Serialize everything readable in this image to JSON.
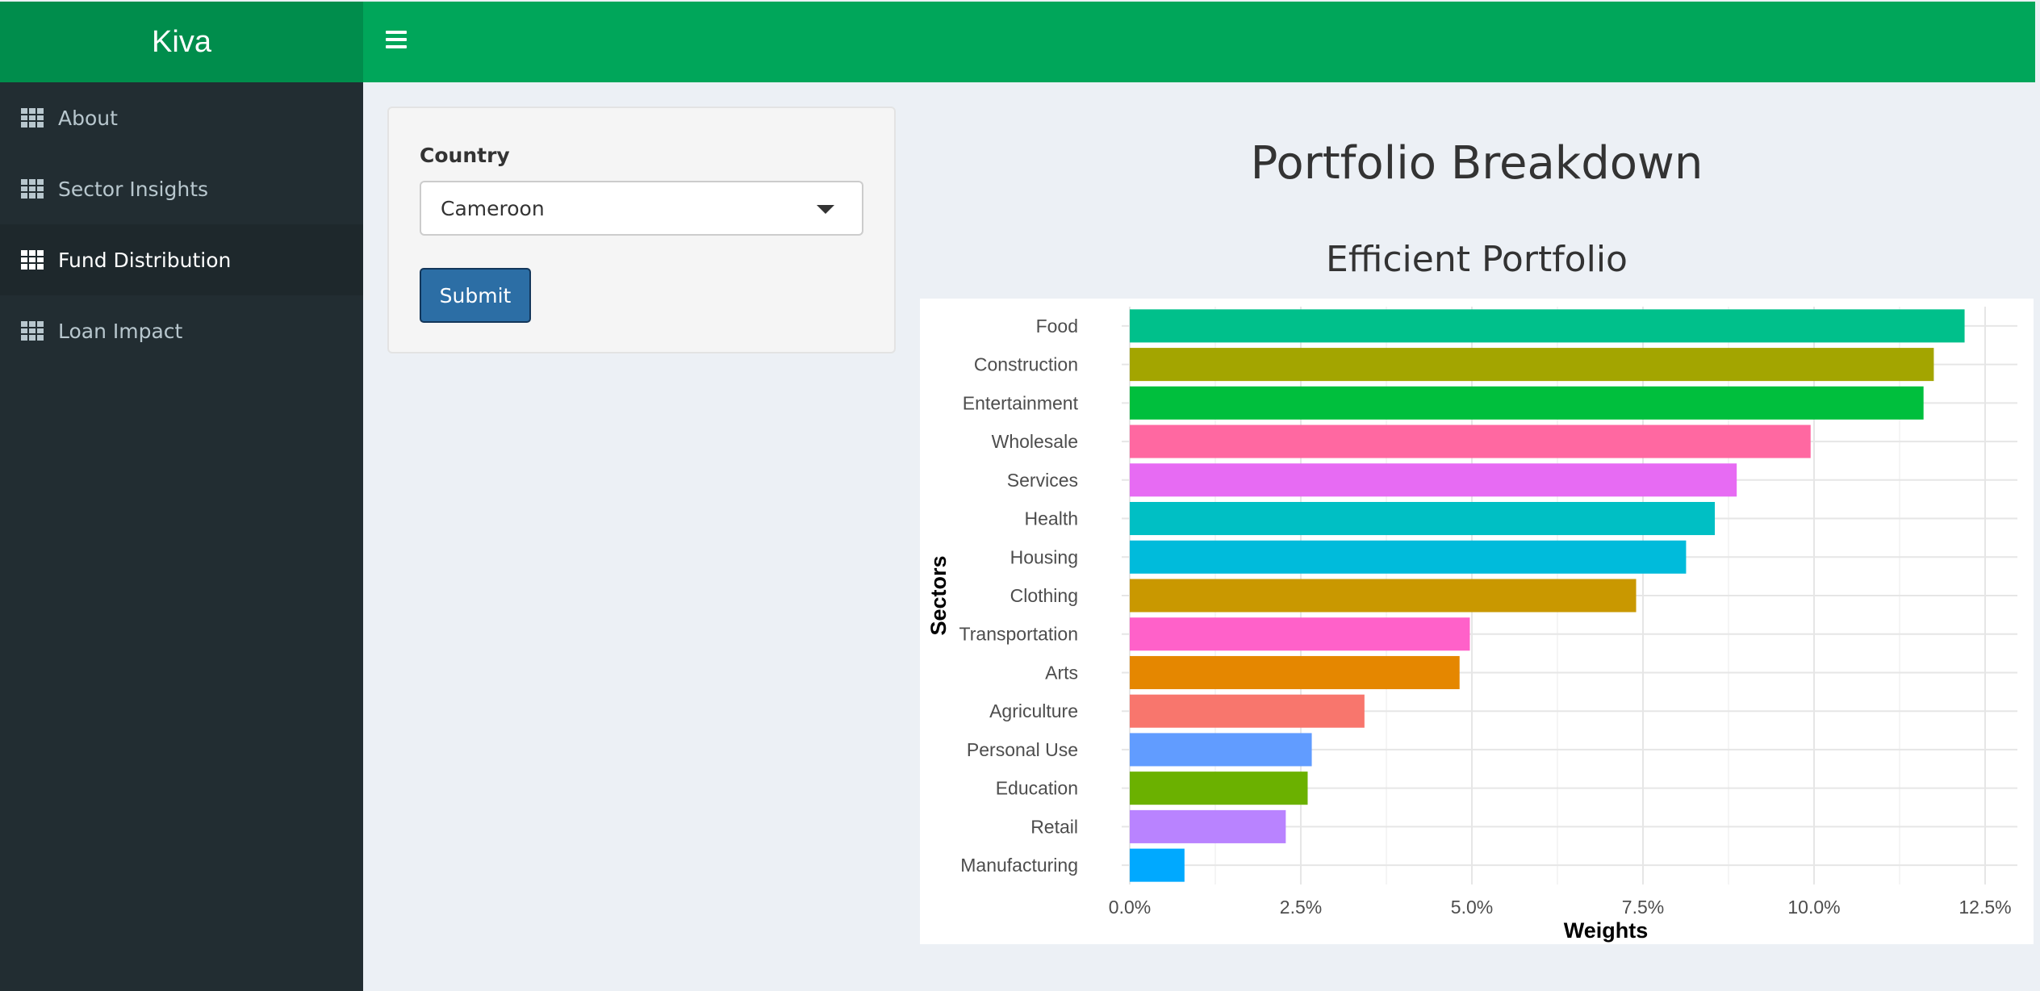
{
  "app": {
    "title": "Kiva"
  },
  "sidebar": {
    "items": [
      {
        "label": "About",
        "icon": "grid-icon",
        "active": false
      },
      {
        "label": "Sector Insights",
        "icon": "grid-icon",
        "active": false
      },
      {
        "label": "Fund Distribution",
        "icon": "grid-icon",
        "active": true
      },
      {
        "label": "Loan Impact",
        "icon": "grid-icon",
        "active": false
      }
    ]
  },
  "form": {
    "country_label": "Country",
    "country_value": "Cameroon",
    "submit_label": "Submit"
  },
  "main": {
    "title": "Portfolio Breakdown",
    "subtitle": "Efficient Portfolio"
  },
  "colors": {
    "brand": "#00a65a",
    "brand_dark": "#008d4c",
    "sidebar": "#222d32",
    "submit": "#2c6ea5"
  },
  "chart_data": {
    "type": "bar",
    "orientation": "horizontal",
    "xlabel": "Weights",
    "ylabel": "Sectors",
    "xlim": [
      0,
      12.5
    ],
    "x_ticks": [
      "0.0%",
      "2.5%",
      "5.0%",
      "7.5%",
      "10.0%",
      "12.5%"
    ],
    "x_tick_values": [
      0,
      2.5,
      5.0,
      7.5,
      10.0,
      12.5
    ],
    "grid": true,
    "categories": [
      "Food",
      "Construction",
      "Entertainment",
      "Wholesale",
      "Services",
      "Health",
      "Housing",
      "Clothing",
      "Transportation",
      "Arts",
      "Agriculture",
      "Personal Use",
      "Education",
      "Retail",
      "Manufacturing"
    ],
    "values": [
      12.2,
      11.75,
      11.6,
      9.95,
      8.87,
      8.55,
      8.13,
      7.4,
      4.97,
      4.82,
      3.43,
      2.66,
      2.6,
      2.28,
      0.8
    ],
    "colors": [
      "#00c08b",
      "#a3a500",
      "#00bf3d",
      "#ff68a1",
      "#e76bf3",
      "#00bfc4",
      "#00bbdb",
      "#c99800",
      "#ff61c9",
      "#e58700",
      "#f8766d",
      "#619cff",
      "#6bb100",
      "#b983ff",
      "#00a9ff"
    ]
  }
}
